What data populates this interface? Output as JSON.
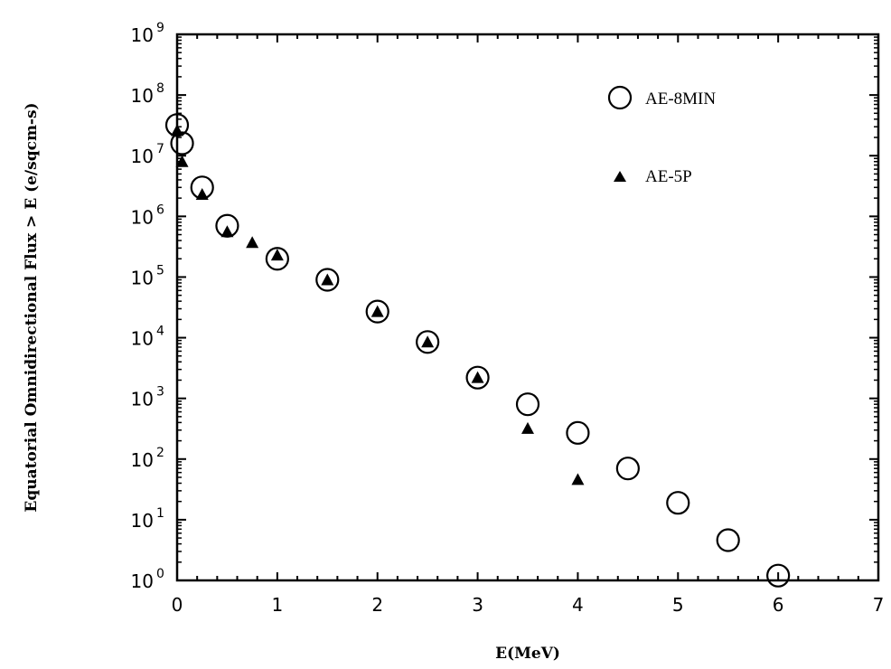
{
  "chart_data": {
    "type": "scatter",
    "title": "",
    "xlabel": "E(MeV)",
    "ylabel": "Equatorial Omnidirectional Flux > E (e/sqcm-s)",
    "xlim": [
      0,
      7
    ],
    "ylim_log10": [
      0,
      9
    ],
    "y_scale": "log",
    "x_ticks": [
      "0",
      "1",
      "2",
      "3",
      "4",
      "5",
      "6",
      "7"
    ],
    "y_ticks": [
      {
        "base": "10",
        "exp": "0"
      },
      {
        "base": "10",
        "exp": "1"
      },
      {
        "base": "10",
        "exp": "2"
      },
      {
        "base": "10",
        "exp": "3"
      },
      {
        "base": "10",
        "exp": "4"
      },
      {
        "base": "10",
        "exp": "5"
      },
      {
        "base": "10",
        "exp": "6"
      },
      {
        "base": "10",
        "exp": "7"
      },
      {
        "base": "10",
        "exp": "8"
      },
      {
        "base": "10",
        "exp": "9"
      }
    ],
    "grid": false,
    "legend_position": "top-right",
    "series": [
      {
        "name": "AE-8MIN",
        "marker": "open-circle",
        "color": "#000000",
        "points": [
          {
            "x": 0.0,
            "y": 32000000.0
          },
          {
            "x": 0.05,
            "y": 16000000.0
          },
          {
            "x": 0.25,
            "y": 3000000.0
          },
          {
            "x": 0.5,
            "y": 700000.0
          },
          {
            "x": 1.0,
            "y": 200000.0
          },
          {
            "x": 1.5,
            "y": 90000.0
          },
          {
            "x": 2.0,
            "y": 27000.0
          },
          {
            "x": 2.5,
            "y": 8500.0
          },
          {
            "x": 3.0,
            "y": 2200.0
          },
          {
            "x": 3.5,
            "y": 800.0
          },
          {
            "x": 4.0,
            "y": 270.0
          },
          {
            "x": 4.5,
            "y": 70.0
          },
          {
            "x": 5.0,
            "y": 19.0
          },
          {
            "x": 5.5,
            "y": 4.6
          },
          {
            "x": 6.0,
            "y": 1.2
          }
        ]
      },
      {
        "name": "AE-5P",
        "marker": "filled-triangle",
        "color": "#000000",
        "points": [
          {
            "x": 0.0,
            "y": 26000000.0
          },
          {
            "x": 0.05,
            "y": 8000000.0
          },
          {
            "x": 0.25,
            "y": 2300000.0
          },
          {
            "x": 0.5,
            "y": 560000.0
          },
          {
            "x": 0.75,
            "y": 370000.0
          },
          {
            "x": 1.0,
            "y": 230000.0
          },
          {
            "x": 1.5,
            "y": 90000.0
          },
          {
            "x": 2.0,
            "y": 27000.0
          },
          {
            "x": 2.5,
            "y": 8500.0
          },
          {
            "x": 3.0,
            "y": 2200.0
          },
          {
            "x": 3.5,
            "y": 320.0
          },
          {
            "x": 4.0,
            "y": 46.0
          }
        ]
      }
    ]
  }
}
